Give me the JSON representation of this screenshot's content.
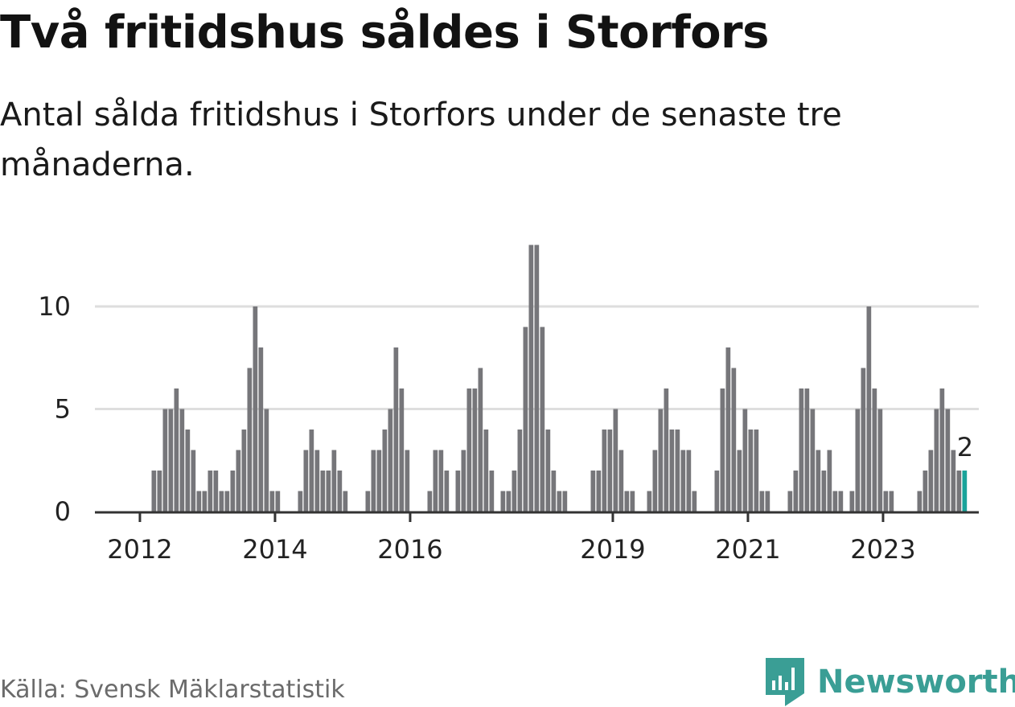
{
  "header": {
    "title": "Två fritidshus såldes i Storfors",
    "subtitle": "Antal sålda fritidshus i Storfors under de senaste tre månaderna."
  },
  "footer": {
    "source": "Källa: Svensk Mäklarstatistik",
    "brand": "Newsworthy"
  },
  "colors": {
    "bar": "#76767a",
    "highlight": "#1aa39a",
    "grid": "#dedede",
    "axis": "#333333",
    "brand": "#3a9e95"
  },
  "chart_data": {
    "type": "bar",
    "y_ticks": [
      0,
      5,
      10
    ],
    "x_ticks": [
      "2012",
      "2014",
      "2016",
      "2019",
      "2021",
      "2023"
    ],
    "ylim": [
      0,
      13
    ],
    "grid": true,
    "highlight_label": "2",
    "values": [
      0,
      0,
      0,
      0,
      0,
      0,
      0,
      0,
      0,
      0,
      2,
      2,
      5,
      5,
      6,
      5,
      4,
      3,
      1,
      1,
      2,
      2,
      1,
      1,
      2,
      3,
      4,
      7,
      10,
      8,
      5,
      1,
      1,
      0,
      0,
      0,
      1,
      3,
      4,
      3,
      2,
      2,
      3,
      2,
      1,
      0,
      0,
      0,
      1,
      3,
      3,
      4,
      5,
      8,
      6,
      3,
      0,
      0,
      0,
      1,
      3,
      3,
      2,
      0,
      2,
      3,
      6,
      6,
      7,
      4,
      2,
      0,
      1,
      1,
      2,
      4,
      9,
      13,
      13,
      9,
      4,
      2,
      1,
      1,
      0,
      0,
      0,
      0,
      2,
      2,
      4,
      4,
      5,
      3,
      1,
      1,
      0,
      0,
      1,
      3,
      5,
      6,
      4,
      4,
      3,
      3,
      1,
      0,
      0,
      0,
      2,
      6,
      8,
      7,
      3,
      5,
      4,
      4,
      1,
      1,
      0,
      0,
      0,
      1,
      2,
      6,
      6,
      5,
      3,
      2,
      3,
      1,
      1,
      0,
      1,
      5,
      7,
      10,
      6,
      5,
      1,
      1,
      0,
      0,
      0,
      0,
      1,
      2,
      3,
      5,
      6,
      5,
      3,
      2,
      2
    ]
  }
}
